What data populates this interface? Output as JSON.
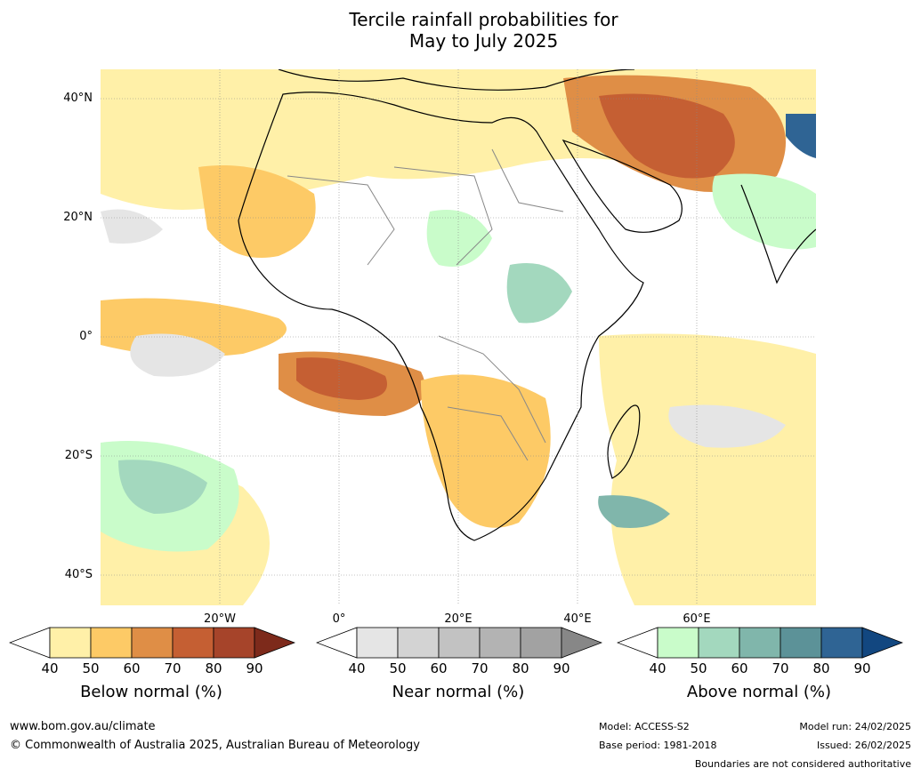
{
  "title_line1": "Tercile rainfall probabilities for",
  "title_line2": "May to July 2025",
  "lat_labels": [
    "40°N",
    "20°N",
    "0°",
    "20°S",
    "40°S"
  ],
  "lon_labels": [
    "20°W",
    "0°",
    "20°E",
    "40°E",
    "60°E"
  ],
  "colorbars": [
    {
      "title": "Below normal (%)",
      "ticks": [
        "40",
        "50",
        "60",
        "70",
        "80",
        "90"
      ],
      "colors": [
        "#fff0a8",
        "#fdca66",
        "#df8e46",
        "#c55f33",
        "#a6442a",
        "#7d2a1b"
      ]
    },
    {
      "title": "Near normal (%)",
      "ticks": [
        "40",
        "50",
        "60",
        "70",
        "80",
        "90"
      ],
      "colors": [
        "#e5e5e5",
        "#d3d3d3",
        "#c2c2c2",
        "#b3b3b3",
        "#a2a2a2",
        "#878787"
      ]
    },
    {
      "title": "Above normal (%)",
      "ticks": [
        "40",
        "50",
        "60",
        "70",
        "80",
        "90"
      ],
      "colors": [
        "#c9fcca",
        "#a3d8be",
        "#80b6ab",
        "#5c9298",
        "#2f6494",
        "#124780"
      ]
    }
  ],
  "footer": {
    "website": "www.bom.gov.au/climate",
    "copyright": "© Commonwealth of Australia 2025, Australian Bureau of Meteorology",
    "model": "Model: ACCESS-S2",
    "base_period": "Base period: 1981-2018",
    "model_run": "Model run: 24/02/2025",
    "issued": "Issued: 26/02/2025",
    "disclaimer": "Boundaries are not considered authoritative"
  }
}
